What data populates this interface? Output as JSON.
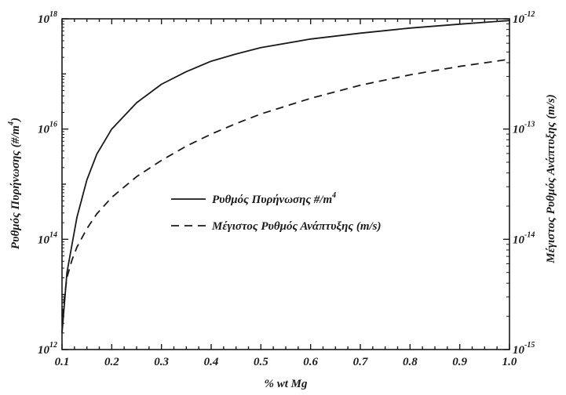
{
  "chart_data": {
    "type": "line",
    "title": "",
    "xlabel": "% wt Mg",
    "ylabel_left": {
      "main": "Ρυθμός Πυρήνωσης (#/m",
      "sup": "4",
      "tail": ")"
    },
    "ylabel_right": "Μέγιστος Ρυθμός Ανάπτυξης (m/s)",
    "x_ticks": [
      "0.1",
      "0.2",
      "0.3",
      "0.4",
      "0.5",
      "0.6",
      "0.7",
      "0.8",
      "0.9",
      "1.0"
    ],
    "x_tick_values": [
      0.1,
      0.2,
      0.3,
      0.4,
      0.5,
      0.6,
      0.7,
      0.8,
      0.9,
      1.0
    ],
    "xlim": [
      0.1,
      1.0
    ],
    "y_left_scale": "log",
    "y_left_lim": [
      1000000000000.0,
      1e+18
    ],
    "y_left_ticks": [
      {
        "base": "10",
        "exp": "12",
        "value": 1000000000000.0
      },
      {
        "base": "10",
        "exp": "14",
        "value": 100000000000000.0
      },
      {
        "base": "10",
        "exp": "16",
        "value": 1e+16
      },
      {
        "base": "10",
        "exp": "18",
        "value": 1e+18
      }
    ],
    "y_right_scale": "log",
    "y_right_lim": [
      1e-15,
      1e-12
    ],
    "y_right_ticks": [
      {
        "base": "10",
        "exp": "-15",
        "value": 1e-15
      },
      {
        "base": "10",
        "exp": "-14",
        "value": 1e-14
      },
      {
        "base": "10",
        "exp": "-13",
        "value": 1e-13
      },
      {
        "base": "10",
        "exp": "-12",
        "value": 1e-12
      }
    ],
    "grid": false,
    "legend_position": "center",
    "series": [
      {
        "name": "Ρυθμός Πυρήνωσης #/m",
        "name_sup": "4",
        "axis": "left",
        "style": "solid",
        "x": [
          0.1,
          0.11,
          0.12,
          0.13,
          0.15,
          0.17,
          0.2,
          0.25,
          0.3,
          0.35,
          0.4,
          0.45,
          0.5,
          0.6,
          0.7,
          0.8,
          0.9,
          1.0
        ],
        "y": [
          2000000000000.0,
          25000000000000.0,
          80000000000000.0,
          250000000000000.0,
          1200000000000000.0,
          3500000000000000.0,
          1e+16,
          3e+16,
          6.5e+16,
          1.1e+17,
          1.7e+17,
          2.3e+17,
          3e+17,
          4.3e+17,
          5.5e+17,
          6.8e+17,
          8e+17,
          9.3e+17
        ]
      },
      {
        "name": "Μέγιστος Ρυθμός Ανάπτυξης (m/s)",
        "axis": "right",
        "style": "dashed",
        "x": [
          0.1,
          0.11,
          0.12,
          0.13,
          0.15,
          0.17,
          0.2,
          0.25,
          0.3,
          0.35,
          0.4,
          0.45,
          0.5,
          0.6,
          0.7,
          0.8,
          0.9,
          1.0
        ],
        "y": [
          2e-15,
          4.5e-15,
          6.5e-15,
          8.5e-15,
          1.25e-14,
          1.7e-14,
          2.4e-14,
          3.7e-14,
          5.2e-14,
          7e-14,
          9e-14,
          1.12e-13,
          1.37e-13,
          1.9e-13,
          2.5e-13,
          3.1e-13,
          3.7e-13,
          4.3e-13
        ]
      }
    ]
  }
}
